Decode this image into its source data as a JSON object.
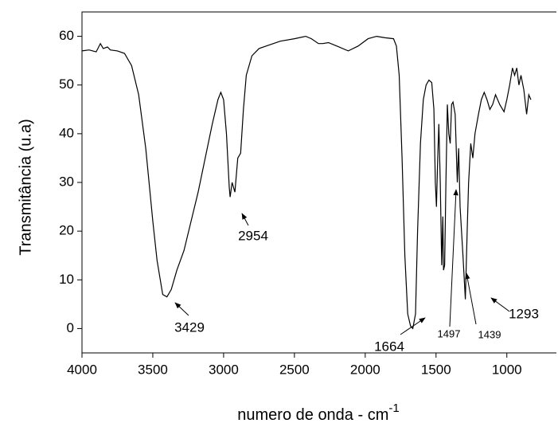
{
  "chart_data": {
    "type": "line",
    "x_label": "numero de onda - cm",
    "x_label_sup": "-1",
    "y_label": "Transmitância (u.a)",
    "color": "#000000",
    "x": [
      4000,
      3950,
      3900,
      3870,
      3850,
      3820,
      3800,
      3750,
      3700,
      3650,
      3600,
      3550,
      3500,
      3470,
      3430,
      3400,
      3370,
      3330,
      3280,
      3230,
      3180,
      3130,
      3080,
      3040,
      3020,
      3000,
      2980,
      2960,
      2954,
      2940,
      2920,
      2900,
      2880,
      2860,
      2840,
      2800,
      2750,
      2700,
      2600,
      2500,
      2420,
      2380,
      2330,
      2300,
      2260,
      2200,
      2120,
      2050,
      1980,
      1920,
      1860,
      1800,
      1780,
      1760,
      1740,
      1720,
      1700,
      1680,
      1664,
      1645,
      1630,
      1610,
      1590,
      1570,
      1550,
      1530,
      1515,
      1505,
      1497,
      1488,
      1480,
      1470,
      1460,
      1452,
      1447,
      1439,
      1430,
      1420,
      1410,
      1400,
      1390,
      1380,
      1365,
      1350,
      1340,
      1330,
      1310,
      1293,
      1280,
      1270,
      1255,
      1240,
      1225,
      1200,
      1180,
      1160,
      1140,
      1120,
      1100,
      1080,
      1050,
      1020,
      1000,
      980,
      960,
      945,
      930,
      915,
      900,
      880,
      860,
      845,
      830
    ],
    "values": [
      57,
      57.2,
      56.8,
      58.5,
      57.5,
      57.8,
      57.2,
      57,
      56.5,
      54,
      48,
      37,
      22,
      14,
      7,
      6.5,
      8,
      12,
      16,
      22,
      28,
      35,
      42,
      47,
      48.5,
      47,
      40,
      29,
      27,
      30,
      28,
      35,
      36,
      45,
      52,
      56,
      57.5,
      58,
      59,
      59.5,
      60,
      59.5,
      58.5,
      58.5,
      58.7,
      58,
      57,
      58,
      59.5,
      60,
      59.7,
      59.5,
      58,
      52,
      35,
      15,
      3,
      0.5,
      0,
      3,
      20,
      38,
      47,
      50,
      51,
      50.5,
      45,
      30,
      25,
      35,
      42,
      30,
      13,
      23,
      12,
      13,
      30,
      46,
      40,
      38,
      46,
      46.5,
      44,
      30,
      37,
      25,
      15,
      6,
      20,
      30,
      38,
      35,
      40,
      44,
      47,
      48.5,
      47,
      45,
      46,
      48,
      46,
      44.5,
      47,
      50,
      53.5,
      52,
      53.5,
      50,
      52,
      49,
      44,
      48,
      47
    ],
    "xlim": [
      4000,
      650
    ],
    "ylim": [
      -5,
      65
    ],
    "xticks": [
      4000,
      3500,
      3000,
      2500,
      2000,
      1500,
      1000
    ],
    "yticks": [
      0,
      10,
      20,
      30,
      40,
      50,
      60
    ],
    "annotations": [
      "3429",
      "2954",
      "1664",
      "1497",
      "1439",
      "1293"
    ]
  }
}
